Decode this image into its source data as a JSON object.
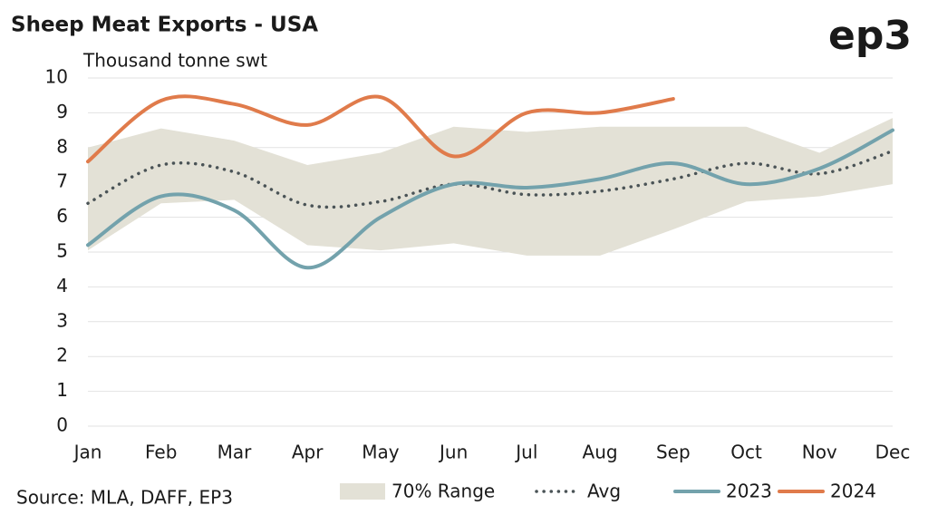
{
  "chart_data": {
    "type": "line",
    "title": "Sheep Meat Exports - USA",
    "y_label": "Thousand tonne swt",
    "logo": "ep3",
    "source": "Source: MLA, DAFF, EP3",
    "categories": [
      "Jan",
      "Feb",
      "Mar",
      "Apr",
      "May",
      "Jun",
      "Jul",
      "Aug",
      "Sep",
      "Oct",
      "Nov",
      "Dec"
    ],
    "ylim": [
      0,
      10
    ],
    "yticks": [
      0,
      1,
      2,
      3,
      4,
      5,
      6,
      7,
      8,
      9,
      10
    ],
    "grid": true,
    "legend": "bottom",
    "range": {
      "name": "70% Range",
      "color": "#e3e1d6",
      "low": [
        5.05,
        6.4,
        6.5,
        5.2,
        5.05,
        5.25,
        4.9,
        4.9,
        5.65,
        6.45,
        6.6,
        6.95
      ],
      "high": [
        8.0,
        8.55,
        8.2,
        7.5,
        7.85,
        8.6,
        8.45,
        8.6,
        8.6,
        8.6,
        7.85,
        8.85
      ]
    },
    "series": [
      {
        "name": "Avg",
        "color": "#4a5356",
        "dash": true,
        "values": [
          6.4,
          7.5,
          7.3,
          6.35,
          6.45,
          6.95,
          6.65,
          6.75,
          7.1,
          7.55,
          7.25,
          7.9
        ]
      },
      {
        "name": "2023",
        "color": "#73a2ac",
        "values": [
          5.2,
          6.6,
          6.2,
          4.55,
          6.0,
          6.95,
          6.85,
          7.1,
          7.55,
          6.95,
          7.4,
          8.5
        ]
      },
      {
        "name": "2024",
        "color": "#e07b4b",
        "values": [
          7.6,
          9.35,
          9.25,
          8.65,
          9.45,
          7.75,
          9.0,
          9.0,
          9.4,
          null,
          null,
          null
        ]
      }
    ]
  }
}
